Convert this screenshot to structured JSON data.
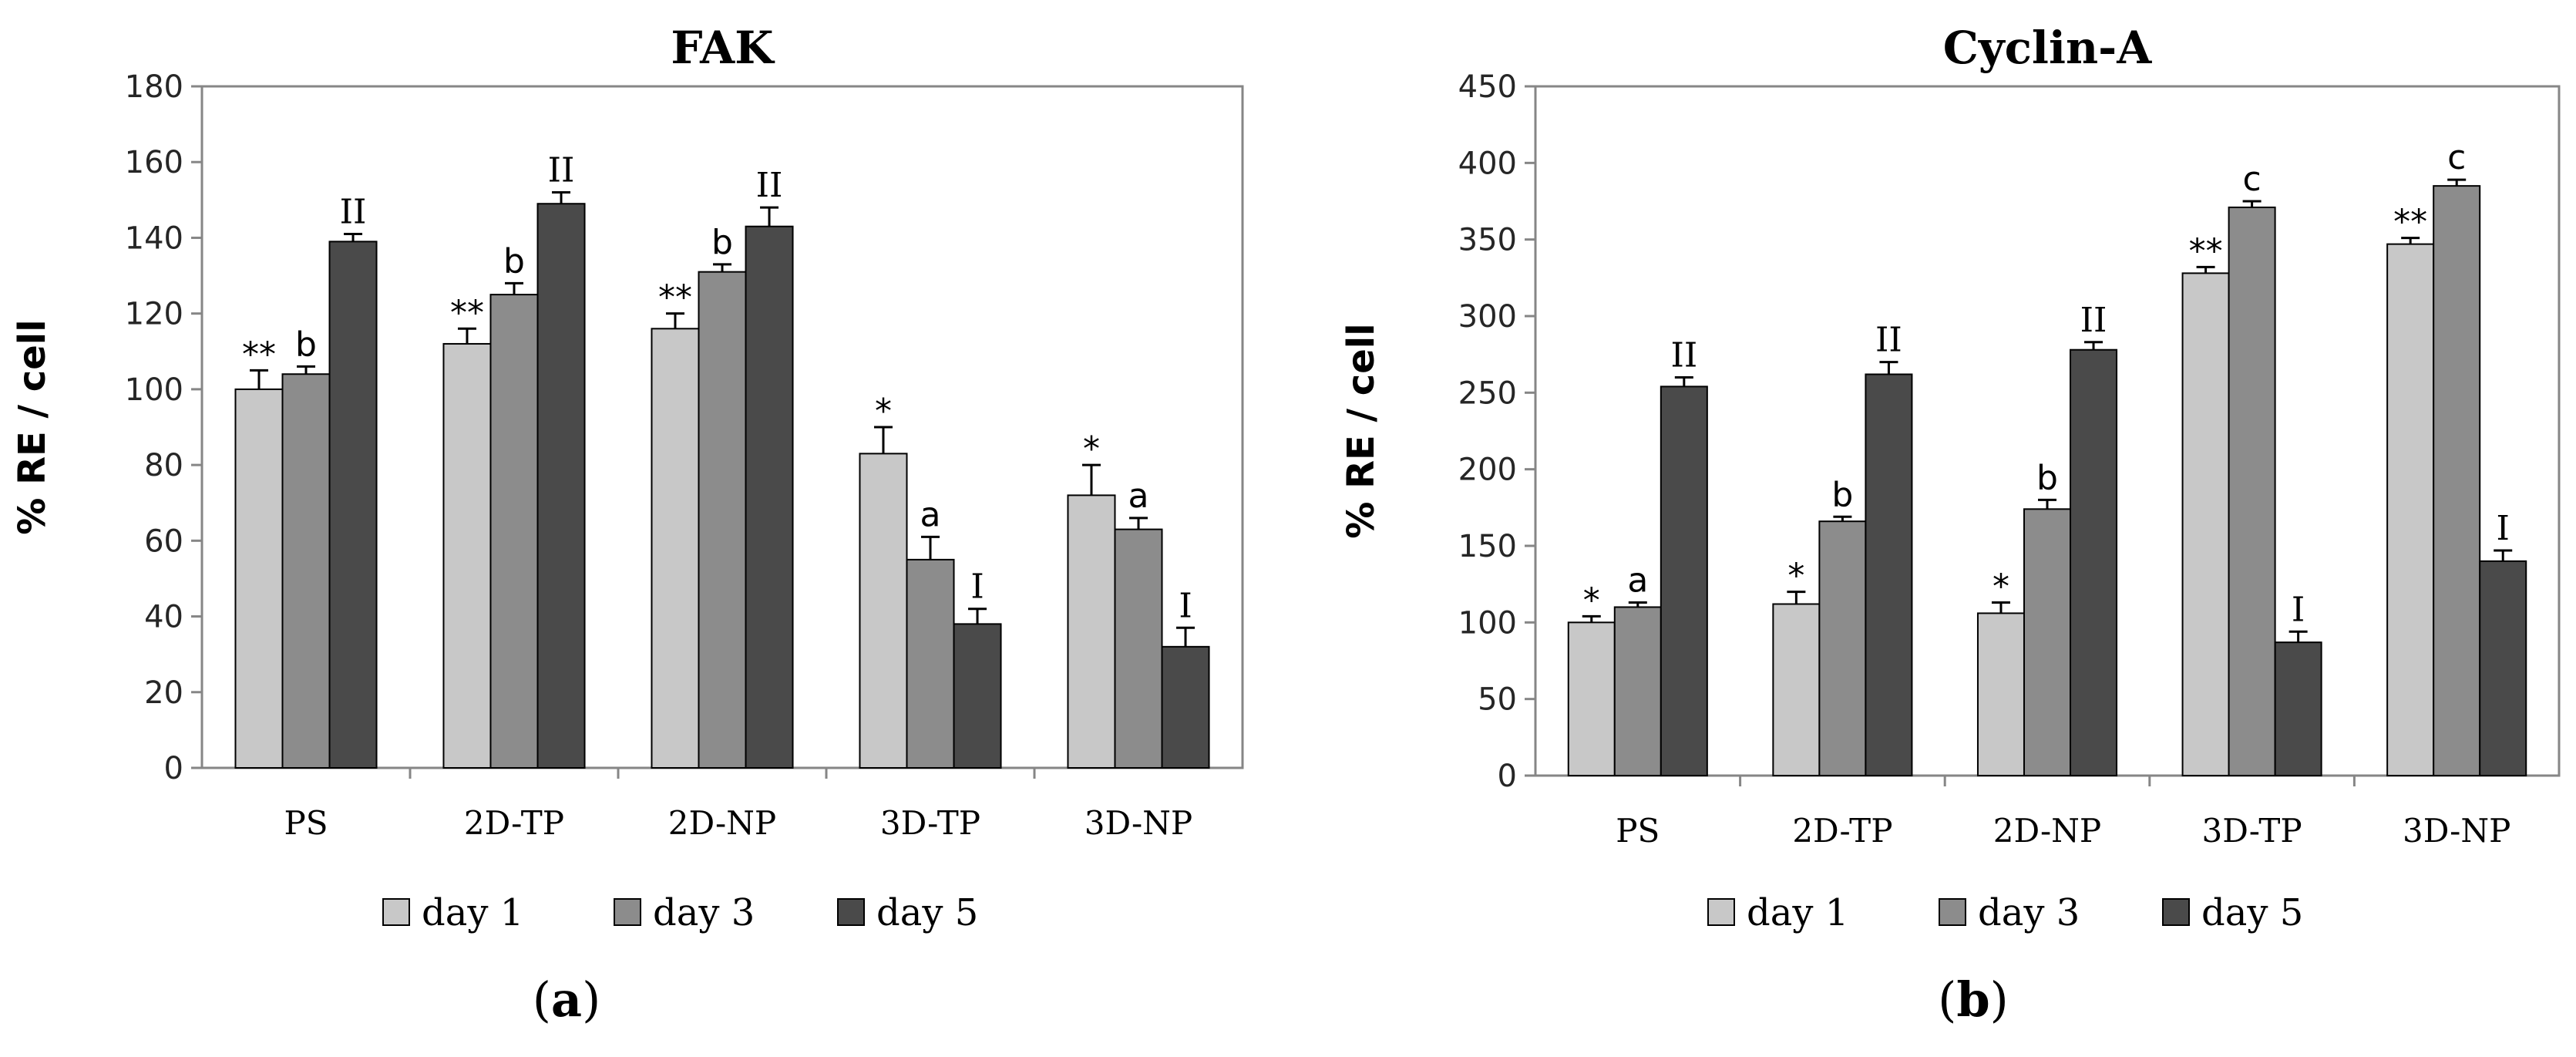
{
  "panel_labels": [
    "a",
    "b"
  ],
  "colors": {
    "day1": "#c8c8c8",
    "day3": "#8c8c8c",
    "day5": "#4a4a4a",
    "axis": "#868686"
  },
  "chart_data": [
    {
      "type": "bar",
      "title": "FAK",
      "ylabel": "% RE / cell",
      "xlabel": "",
      "ylim": [
        0,
        180
      ],
      "yticks": [
        0,
        20,
        40,
        60,
        80,
        100,
        120,
        140,
        160,
        180
      ],
      "categories": [
        "PS",
        "2D-TP",
        "2D-NP",
        "3D-TP",
        "3D-NP"
      ],
      "series": [
        {
          "name": "day 1",
          "values": [
            100,
            112,
            116,
            83,
            72
          ],
          "errors": [
            5,
            4,
            4,
            7,
            8
          ],
          "annotations": [
            "**",
            "**",
            "**",
            "*",
            "*"
          ]
        },
        {
          "name": "day 3",
          "values": [
            104,
            125,
            131,
            55,
            63
          ],
          "errors": [
            2,
            3,
            2,
            6,
            3
          ],
          "annotations": [
            "b",
            "b",
            "b",
            "a",
            "a"
          ]
        },
        {
          "name": "day 5",
          "values": [
            139,
            149,
            143,
            38,
            32
          ],
          "errors": [
            2,
            3,
            5,
            4,
            5
          ],
          "annotations": [
            "II",
            "II",
            "II",
            "I",
            "I"
          ]
        }
      ],
      "legend": "bottom"
    },
    {
      "type": "bar",
      "title": "Cyclin-A",
      "ylabel": "% RE / cell",
      "xlabel": "",
      "ylim": [
        0,
        450
      ],
      "yticks": [
        0,
        50,
        100,
        150,
        200,
        250,
        300,
        350,
        400,
        450
      ],
      "categories": [
        "PS",
        "2D-TP",
        "2D-NP",
        "3D-TP",
        "3D-NP"
      ],
      "series": [
        {
          "name": "day 1",
          "values": [
            100,
            112,
            106,
            328,
            347
          ],
          "errors": [
            4,
            8,
            7,
            4,
            4
          ],
          "annotations": [
            "*",
            "*",
            "*",
            "**",
            "**"
          ]
        },
        {
          "name": "day 3",
          "values": [
            110,
            166,
            174,
            371,
            385
          ],
          "errors": [
            3,
            3,
            6,
            4,
            4
          ],
          "annotations": [
            "a",
            "b",
            "b",
            "c",
            "c"
          ]
        },
        {
          "name": "day 5",
          "values": [
            254,
            262,
            278,
            87,
            140
          ],
          "errors": [
            6,
            8,
            5,
            7,
            7
          ],
          "annotations": [
            "II",
            "II",
            "II",
            "I",
            "I"
          ]
        }
      ],
      "legend": "bottom"
    }
  ]
}
